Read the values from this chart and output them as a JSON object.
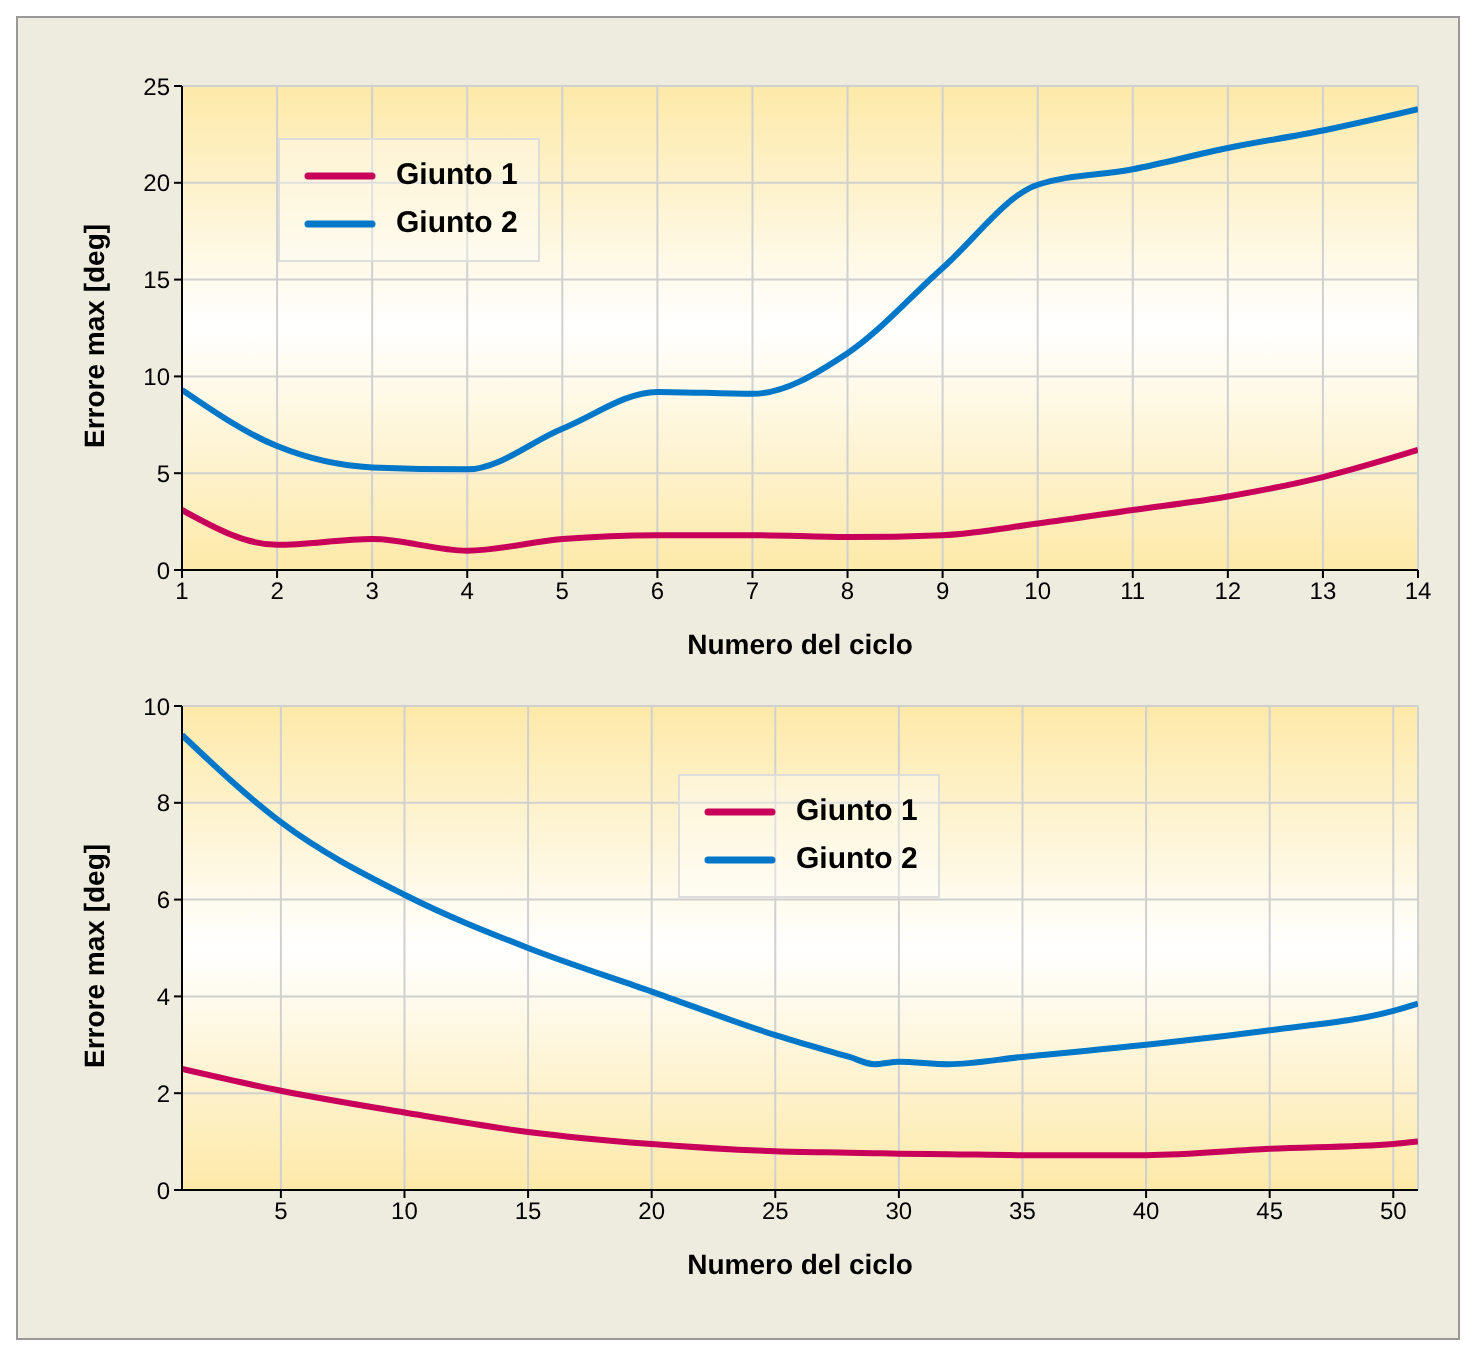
{
  "chart_data": [
    {
      "type": "line",
      "xlabel": "Numero del ciclo",
      "ylabel": "Errore max [deg]",
      "xlim": [
        1,
        14
      ],
      "xticks": [
        1,
        2,
        3,
        4,
        5,
        6,
        7,
        8,
        9,
        10,
        11,
        12,
        13,
        14
      ],
      "ylim": [
        0,
        25
      ],
      "yticks": [
        0,
        5,
        10,
        15,
        20,
        25
      ],
      "grid": true,
      "legend": "top left",
      "x": [
        1,
        2,
        3,
        4,
        5,
        6,
        7,
        8,
        9,
        10,
        11,
        12,
        13,
        14
      ],
      "series": [
        {
          "name": "Giunto 1",
          "color": "#c8005a",
          "values": [
            3.1,
            1.3,
            1.6,
            1.0,
            1.6,
            1.8,
            1.8,
            1.7,
            1.8,
            2.4,
            3.1,
            3.8,
            4.8,
            6.2
          ]
        },
        {
          "name": "Giunto 2",
          "color": "#0077c8",
          "values": [
            9.3,
            6.4,
            5.3,
            5.2,
            7.3,
            9.2,
            9.1,
            11.2,
            15.6,
            19.9,
            20.7,
            21.8,
            22.7,
            23.8
          ]
        }
      ]
    },
    {
      "type": "line",
      "xlabel": "Numero del ciclo",
      "ylabel": "Errore max [deg]",
      "xlim": [
        1,
        51
      ],
      "xticks": [
        5,
        10,
        15,
        20,
        25,
        30,
        35,
        40,
        45,
        50
      ],
      "ylim": [
        0,
        10
      ],
      "yticks": [
        0,
        2,
        4,
        6,
        8,
        10
      ],
      "grid": true,
      "legend": "top",
      "x": [
        1,
        5,
        10,
        15,
        20,
        25,
        28,
        29,
        30,
        32,
        35,
        40,
        45,
        50,
        51
      ],
      "series": [
        {
          "name": "Giunto 1",
          "color": "#c8005a",
          "values": [
            2.5,
            2.05,
            1.6,
            1.2,
            0.95,
            0.8,
            0.77,
            0.76,
            0.75,
            0.74,
            0.72,
            0.72,
            0.85,
            0.95,
            1.0
          ]
        },
        {
          "name": "Giunto 2",
          "color": "#0077c8",
          "values": [
            9.4,
            7.6,
            6.1,
            5.0,
            4.1,
            3.2,
            2.75,
            2.6,
            2.65,
            2.6,
            2.75,
            3.0,
            3.3,
            3.7,
            3.85
          ]
        }
      ]
    }
  ]
}
